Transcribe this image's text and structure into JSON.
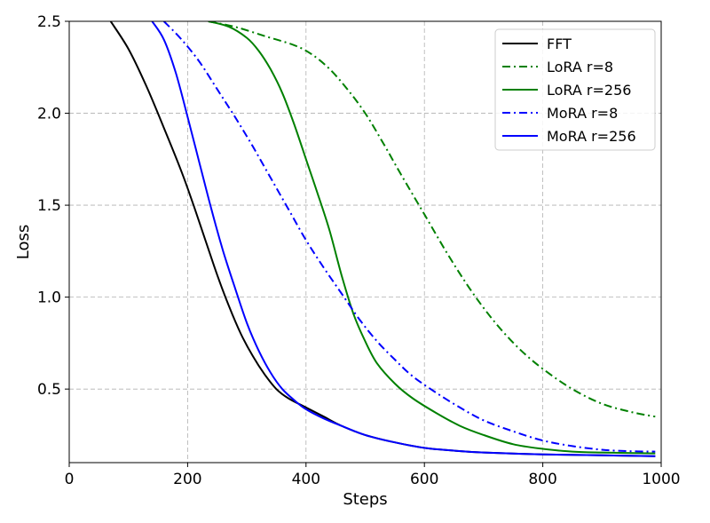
{
  "chart_data": {
    "type": "line",
    "title": "",
    "xlabel": "Steps",
    "ylabel": "Loss",
    "xlim": [
      0,
      1000
    ],
    "ylim": [
      0.1,
      2.5
    ],
    "xticks": [
      0,
      200,
      400,
      600,
      800,
      1000
    ],
    "yticks": [
      0.5,
      1.0,
      1.5,
      2.0,
      2.5
    ],
    "xtick_labels": [
      "0",
      "200",
      "400",
      "600",
      "800",
      "1000"
    ],
    "ytick_labels": [
      "0.5",
      "1.0",
      "1.5",
      "2.0",
      "2.5"
    ],
    "grid": true,
    "legend_position": "top-right",
    "series": [
      {
        "name": "FFT",
        "color": "#000000",
        "dash": "solid",
        "x": [
          70,
          100,
          130,
          160,
          190,
          210,
          230,
          250,
          270,
          290,
          310,
          330,
          350,
          370,
          400,
          430,
          460,
          500,
          550,
          600,
          650,
          700,
          800,
          900,
          990
        ],
        "y": [
          2.5,
          2.35,
          2.15,
          1.92,
          1.68,
          1.5,
          1.31,
          1.12,
          0.95,
          0.8,
          0.68,
          0.58,
          0.5,
          0.45,
          0.4,
          0.35,
          0.3,
          0.25,
          0.21,
          0.18,
          0.165,
          0.155,
          0.145,
          0.14,
          0.135
        ]
      },
      {
        "name": "LoRA r=8",
        "color": "#008000",
        "dash": "dashdot",
        "x": [
          235,
          280,
          330,
          380,
          410,
          440,
          470,
          500,
          530,
          560,
          600,
          640,
          680,
          720,
          760,
          800,
          850,
          900,
          950,
          990
        ],
        "y": [
          2.5,
          2.47,
          2.42,
          2.37,
          2.32,
          2.24,
          2.13,
          2.0,
          1.84,
          1.67,
          1.45,
          1.23,
          1.03,
          0.86,
          0.72,
          0.61,
          0.5,
          0.42,
          0.375,
          0.35
        ]
      },
      {
        "name": "LoRA r=256",
        "color": "#008000",
        "dash": "solid",
        "x": [
          235,
          270,
          300,
          320,
          340,
          360,
          380,
          400,
          420,
          440,
          460,
          480,
          500,
          520,
          550,
          580,
          620,
          660,
          700,
          750,
          800,
          850,
          900,
          990
        ],
        "y": [
          2.5,
          2.47,
          2.41,
          2.34,
          2.24,
          2.11,
          1.94,
          1.75,
          1.56,
          1.36,
          1.12,
          0.91,
          0.76,
          0.64,
          0.53,
          0.45,
          0.37,
          0.3,
          0.25,
          0.2,
          0.175,
          0.16,
          0.155,
          0.15
        ]
      },
      {
        "name": "MoRA r=8",
        "color": "#0000ff",
        "dash": "dashdot",
        "x": [
          160,
          190,
          220,
          250,
          280,
          310,
          340,
          370,
          400,
          430,
          460,
          490,
          520,
          550,
          580,
          620,
          660,
          700,
          750,
          800,
          850,
          900,
          950,
          990
        ],
        "y": [
          2.5,
          2.4,
          2.28,
          2.13,
          1.98,
          1.82,
          1.65,
          1.48,
          1.31,
          1.16,
          1.02,
          0.88,
          0.76,
          0.66,
          0.57,
          0.48,
          0.4,
          0.33,
          0.27,
          0.22,
          0.19,
          0.17,
          0.162,
          0.16
        ]
      },
      {
        "name": "MoRA r=256",
        "color": "#0000ff",
        "dash": "solid",
        "x": [
          140,
          160,
          180,
          200,
          220,
          240,
          260,
          280,
          300,
          320,
          340,
          360,
          380,
          400,
          430,
          460,
          500,
          550,
          600,
          650,
          700,
          800,
          900,
          990
        ],
        "y": [
          2.5,
          2.4,
          2.22,
          1.98,
          1.73,
          1.48,
          1.25,
          1.05,
          0.86,
          0.71,
          0.59,
          0.5,
          0.44,
          0.39,
          0.34,
          0.3,
          0.25,
          0.21,
          0.18,
          0.165,
          0.155,
          0.145,
          0.14,
          0.135
        ]
      }
    ]
  }
}
